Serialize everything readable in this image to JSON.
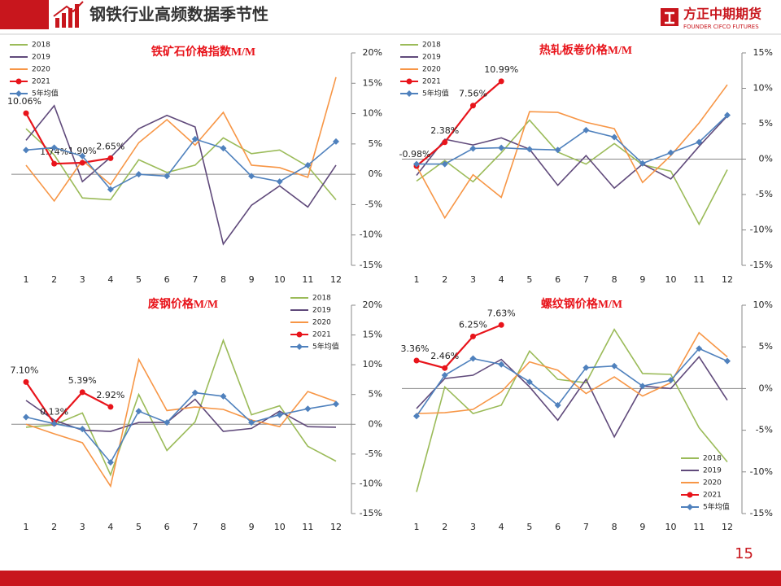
{
  "header": {
    "title": "钢铁行业高频数据季节性",
    "logo_cn": "方正中期期货",
    "logo_en": "FOUNDER CIFCO FUTURES",
    "page_number": "15"
  },
  "chart_data": [
    {
      "type": "line",
      "title": "铁矿石价格指数M/M",
      "legend": "upper left",
      "categories": [
        "1",
        "2",
        "3",
        "4",
        "5",
        "6",
        "7",
        "8",
        "9",
        "10",
        "11",
        "12"
      ],
      "ylim": [
        -15,
        20
      ],
      "yticks": [
        {
          "value": -15,
          "label": "-15%"
        },
        {
          "value": -10,
          "label": "-10%"
        },
        {
          "value": -5,
          "label": "-5%"
        },
        {
          "value": 0,
          "label": "0%"
        },
        {
          "value": 5,
          "label": "5%"
        },
        {
          "value": 10,
          "label": "10%"
        },
        {
          "value": 15,
          "label": "15%"
        },
        {
          "value": 20,
          "label": "20%"
        }
      ],
      "series": [
        {
          "name": "2018",
          "color": "#9bbb59",
          "values": [
            7.5,
            3.2,
            -3.9,
            -4.2,
            2.4,
            0.3,
            1.5,
            6,
            3.4,
            4,
            1.3,
            -4.2
          ]
        },
        {
          "name": "2019",
          "color": "#604a7b",
          "values": [
            5.6,
            11.3,
            -1.2,
            2.8,
            7.5,
            9.7,
            7.8,
            -11.5,
            -5.1,
            -1.9,
            -5.4,
            1.5
          ]
        },
        {
          "name": "2020",
          "color": "#f79646",
          "values": [
            1.5,
            -4.4,
            2.3,
            -1.7,
            5.2,
            9,
            4.8,
            10.2,
            1.5,
            1.1,
            -0.5,
            16
          ]
        },
        {
          "name": "2021",
          "color": "#e8141b",
          "marker": "circle",
          "values": [
            10.06,
            1.74,
            1.9,
            2.65,
            null,
            null,
            null,
            null,
            null,
            null,
            null,
            null
          ],
          "value_labels": [
            "10.06%",
            "1.74%",
            "1.90%",
            "2.65%",
            null,
            null,
            null,
            null,
            null,
            null,
            null,
            null
          ]
        },
        {
          "name": "5年均值",
          "color": "#4f81bd",
          "marker": "diamond",
          "values": [
            4,
            4.4,
            3,
            -2.5,
            0,
            -0.3,
            5.8,
            4.3,
            -0.3,
            -1.2,
            1.5,
            5.4
          ]
        }
      ]
    },
    {
      "type": "line",
      "title": "热轧板卷价格M/M",
      "legend": "upper left",
      "categories": [
        "1",
        "2",
        "3",
        "4",
        "5",
        "6",
        "7",
        "8",
        "9",
        "10",
        "11",
        "12"
      ],
      "ylim": [
        -15,
        15
      ],
      "yticks": [
        {
          "value": -15,
          "label": "-15%"
        },
        {
          "value": -10,
          "label": "-10%"
        },
        {
          "value": -5,
          "label": "-5%"
        },
        {
          "value": 0,
          "label": "0%"
        },
        {
          "value": 5,
          "label": "5%"
        },
        {
          "value": 10,
          "label": "10%"
        },
        {
          "value": 15,
          "label": "15%"
        }
      ],
      "series": [
        {
          "name": "2018",
          "color": "#9bbb59",
          "values": [
            -3.1,
            -0.2,
            -3.2,
            0.9,
            5.5,
            1,
            -0.7,
            2.2,
            -0.8,
            -1.7,
            -9.2,
            -1.5
          ]
        },
        {
          "name": "2019",
          "color": "#604a7b",
          "values": [
            -2.3,
            2.8,
            2,
            3,
            1.4,
            -3.7,
            0.5,
            -4.1,
            -0.7,
            -2.8,
            1.8,
            6.1
          ]
        },
        {
          "name": "2020",
          "color": "#f79646",
          "values": [
            -1,
            -8.3,
            -2.2,
            -5.4,
            6.7,
            6.6,
            5.2,
            4.3,
            -3.3,
            0.5,
            5.1,
            10.5
          ]
        },
        {
          "name": "2021",
          "color": "#e8141b",
          "marker": "circle",
          "values": [
            -0.98,
            2.38,
            7.56,
            10.99,
            null,
            null,
            null,
            null,
            null,
            null,
            null,
            null
          ],
          "value_labels": [
            "-0.98%",
            "2.38%",
            "7.56%",
            "10.99%",
            null,
            null,
            null,
            null,
            null,
            null,
            null,
            null
          ]
        },
        {
          "name": "5年均值",
          "color": "#4f81bd",
          "marker": "diamond",
          "values": [
            -0.7,
            -0.7,
            1.5,
            1.6,
            1.4,
            1.3,
            4.1,
            3.1,
            -0.6,
            0.9,
            2.4,
            6.2
          ]
        }
      ]
    },
    {
      "type": "line",
      "title": "废钢价格M/M",
      "legend": "upper right",
      "categories": [
        "1",
        "2",
        "3",
        "4",
        "5",
        "6",
        "7",
        "8",
        "9",
        "10",
        "11",
        "12"
      ],
      "ylim": [
        -15,
        20
      ],
      "yticks": [
        {
          "value": -15,
          "label": "-15%"
        },
        {
          "value": -10,
          "label": "-10%"
        },
        {
          "value": -5,
          "label": "-5%"
        },
        {
          "value": 0,
          "label": "0%"
        },
        {
          "value": 5,
          "label": "5%"
        },
        {
          "value": 10,
          "label": "10%"
        },
        {
          "value": 15,
          "label": "15%"
        },
        {
          "value": 20,
          "label": "20%"
        }
      ],
      "series": [
        {
          "name": "2018",
          "color": "#9bbb59",
          "values": [
            -0.5,
            -0.1,
            1.9,
            -8.5,
            5,
            -4.4,
            0.4,
            14.1,
            1.6,
            3.1,
            -3.7,
            -6.2
          ]
        },
        {
          "name": "2019",
          "color": "#604a7b",
          "values": [
            4,
            0.7,
            -1,
            -1.2,
            0.3,
            0.3,
            4.2,
            -1.2,
            -0.7,
            2.2,
            -0.4,
            -0.5
          ]
        },
        {
          "name": "2020",
          "color": "#f79646",
          "values": [
            0,
            -1.6,
            -3.1,
            -10.4,
            10.9,
            2.3,
            2.9,
            2.5,
            0.7,
            -0.4,
            5.5,
            3.8
          ]
        },
        {
          "name": "2021",
          "color": "#e8141b",
          "marker": "circle",
          "values": [
            7.1,
            0.13,
            5.39,
            2.92,
            null,
            null,
            null,
            null,
            null,
            null,
            null,
            null
          ],
          "value_labels": [
            "7.10%",
            "0.13%",
            "5.39%",
            "2.92%",
            null,
            null,
            null,
            null,
            null,
            null,
            null,
            null
          ]
        },
        {
          "name": "5年均值",
          "color": "#4f81bd",
          "marker": "diamond",
          "values": [
            1.2,
            0.1,
            -0.8,
            -6.4,
            2.2,
            0.3,
            5.3,
            4.7,
            0.3,
            1.6,
            2.6,
            3.4
          ]
        }
      ]
    },
    {
      "type": "line",
      "title": "螺纹钢价格M/M",
      "legend": "lower right",
      "categories": [
        "1",
        "2",
        "3",
        "4",
        "5",
        "6",
        "7",
        "8",
        "9",
        "10",
        "11",
        "12"
      ],
      "ylim": [
        -15,
        10
      ],
      "yticks": [
        {
          "value": -15,
          "label": "-15%"
        },
        {
          "value": -10,
          "label": "-10%"
        },
        {
          "value": -5,
          "label": "-5%"
        },
        {
          "value": 0,
          "label": "0%"
        },
        {
          "value": 5,
          "label": "5%"
        },
        {
          "value": 10,
          "label": "10%"
        }
      ],
      "series": [
        {
          "name": "2018",
          "color": "#9bbb59",
          "values": [
            -12.4,
            0.2,
            -3,
            -2,
            4.5,
            1.1,
            0.7,
            7.1,
            1.8,
            1.7,
            -4.7,
            -8.8
          ]
        },
        {
          "name": "2019",
          "color": "#604a7b",
          "values": [
            -2.4,
            1.2,
            1.6,
            3.5,
            0.2,
            -3.8,
            1.1,
            -5.8,
            0.3,
            0,
            3.8,
            -1.4
          ]
        },
        {
          "name": "2020",
          "color": "#f79646",
          "values": [
            -3,
            -2.9,
            -2.5,
            -0.4,
            3.2,
            2.2,
            -0.6,
            1.4,
            -0.9,
            0.7,
            6.7,
            3.8
          ]
        },
        {
          "name": "2021",
          "color": "#e8141b",
          "marker": "circle",
          "values": [
            3.36,
            2.46,
            6.25,
            7.63,
            null,
            null,
            null,
            null,
            null,
            null,
            null,
            null
          ],
          "value_labels": [
            "3.36%",
            "2.46%",
            "6.25%",
            "7.63%",
            null,
            null,
            null,
            null,
            null,
            null,
            null,
            null
          ]
        },
        {
          "name": "5年均值",
          "color": "#4f81bd",
          "marker": "diamond",
          "values": [
            -3.3,
            1.6,
            3.6,
            2.9,
            0.8,
            -2,
            2.5,
            2.7,
            0.3,
            1,
            4.8,
            3.3
          ]
        }
      ]
    }
  ]
}
